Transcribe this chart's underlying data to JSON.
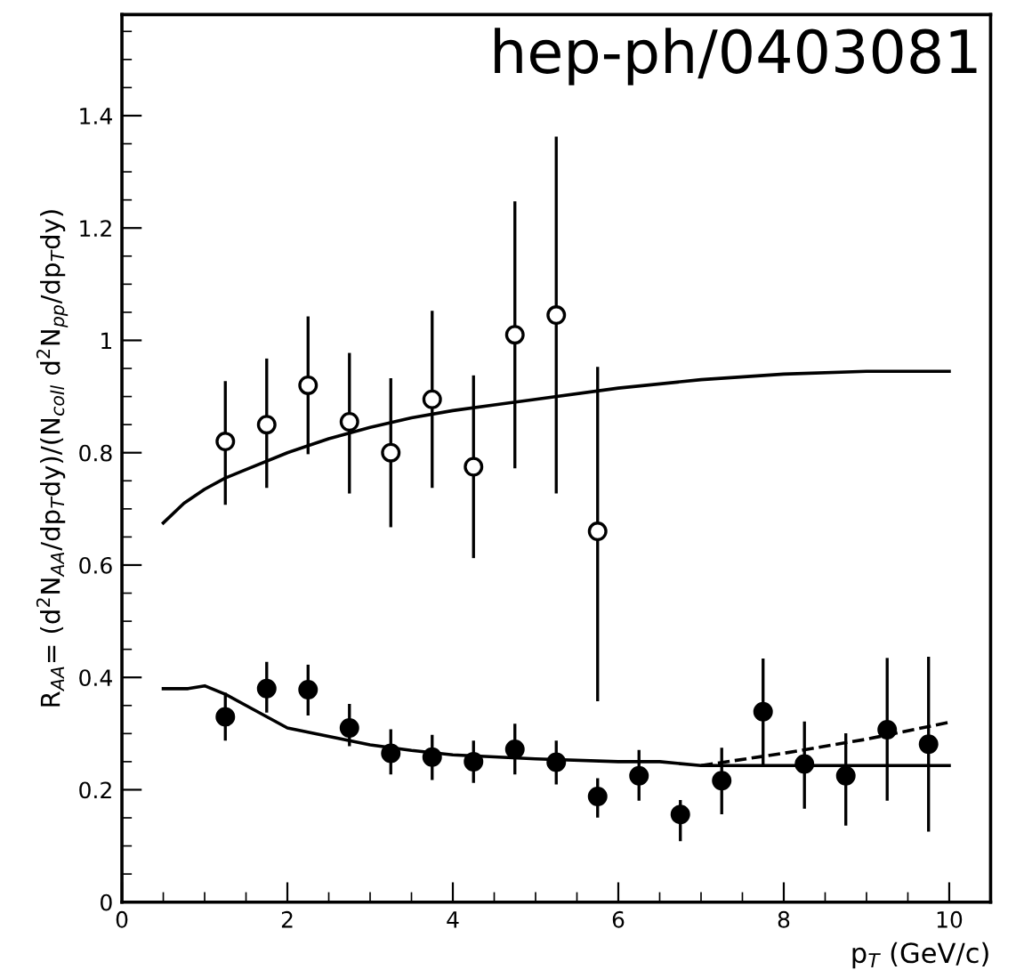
{
  "chart_data": {
    "type": "scatter",
    "xlabel": "p$_{T}$ (GeV/c)",
    "ylabel": "R$_{AA}$= (d$^{2}$N$_{AA}$/dp$_{T}$dy)/(N$_{coll}$ d$^{2}$N$_{pp}$/dp$_{T}$dy)",
    "annotations": [
      "hep-ph/0403081"
    ],
    "xlim": [
      0,
      10.5
    ],
    "xticks": [
      0,
      2,
      4,
      6,
      8,
      10
    ],
    "ylim": [
      0,
      1.58
    ],
    "yticks": [
      0,
      0.2,
      0.4,
      0.6,
      0.8,
      1,
      1.2,
      1.4
    ],
    "grid": false,
    "legend": false,
    "series": [
      {
        "marker": "circle",
        "color": "#000000",
        "x": [
          1.25,
          1.75,
          2.25,
          2.75,
          3.25,
          3.75,
          4.25,
          4.75,
          5.25,
          5.75
        ],
        "values": [
          0.82,
          0.85,
          0.92,
          0.855,
          0.8,
          0.895,
          0.775,
          1.01,
          1.045,
          0.66
        ],
        "errors": [
          [
            0.71,
            0.925
          ],
          [
            0.74,
            0.965
          ],
          [
            0.8,
            1.04
          ],
          [
            0.73,
            0.975
          ],
          [
            0.67,
            0.93
          ],
          [
            0.74,
            1.05
          ],
          [
            0.615,
            0.935
          ],
          [
            0.775,
            1.245
          ],
          [
            0.73,
            1.36
          ],
          [
            0.36,
            0.95
          ]
        ]
      },
      {
        "marker": "circle",
        "color": "#000000",
        "x": [
          1.25,
          1.75,
          2.25,
          2.75,
          3.25,
          3.75,
          4.25,
          4.75,
          5.25,
          5.75,
          6.25,
          6.75,
          7.25,
          7.75,
          8.25,
          8.75,
          9.25,
          9.75
        ],
        "values": [
          0.33,
          0.38,
          0.378,
          0.31,
          0.265,
          0.258,
          0.25,
          0.272,
          0.249,
          0.188,
          0.225,
          0.156,
          0.216,
          0.339,
          0.246,
          0.225,
          0.307,
          0.281
        ],
        "errors": [
          [
            0.29,
            0.37
          ],
          [
            0.34,
            0.425
          ],
          [
            0.335,
            0.42
          ],
          [
            0.28,
            0.35
          ],
          [
            0.23,
            0.305
          ],
          [
            0.22,
            0.295
          ],
          [
            0.215,
            0.285
          ],
          [
            0.23,
            0.315
          ],
          [
            0.212,
            0.285
          ],
          [
            0.153,
            0.218
          ],
          [
            0.183,
            0.268
          ],
          [
            0.111,
            0.179
          ],
          [
            0.159,
            0.272
          ],
          [
            0.244,
            0.431
          ],
          [
            0.169,
            0.319
          ],
          [
            0.139,
            0.298
          ],
          [
            0.183,
            0.432
          ],
          [
            0.128,
            0.434
          ]
        ]
      },
      {
        "type": "line",
        "line_style": "solid",
        "color": "#000000",
        "x": [
          0.5,
          0.75,
          1.0,
          1.25,
          1.5,
          2.0,
          2.5,
          3.0,
          3.5,
          4.0,
          4.5,
          5.0,
          6.0,
          7.0,
          8.0,
          9.0,
          10.0
        ],
        "values": [
          0.675,
          0.71,
          0.735,
          0.755,
          0.77,
          0.8,
          0.825,
          0.845,
          0.862,
          0.875,
          0.885,
          0.895,
          0.915,
          0.93,
          0.94,
          0.945,
          0.945
        ]
      },
      {
        "type": "line",
        "line_style": "solid",
        "color": "#000000",
        "x": [
          0.5,
          0.8,
          1.0,
          1.25,
          1.5,
          2.0,
          2.5,
          3.0,
          3.5,
          4.0,
          5.0,
          6.0,
          6.5,
          7.0,
          10.0
        ],
        "values": [
          0.38,
          0.38,
          0.385,
          0.37,
          0.35,
          0.31,
          0.295,
          0.28,
          0.27,
          0.262,
          0.255,
          0.25,
          0.25,
          0.243,
          0.243
        ]
      },
      {
        "type": "line",
        "line_style": "dashed",
        "color": "#000000",
        "x": [
          7.0,
          8.0,
          9.0,
          10.0
        ],
        "values": [
          0.243,
          0.265,
          0.29,
          0.32
        ]
      }
    ]
  }
}
